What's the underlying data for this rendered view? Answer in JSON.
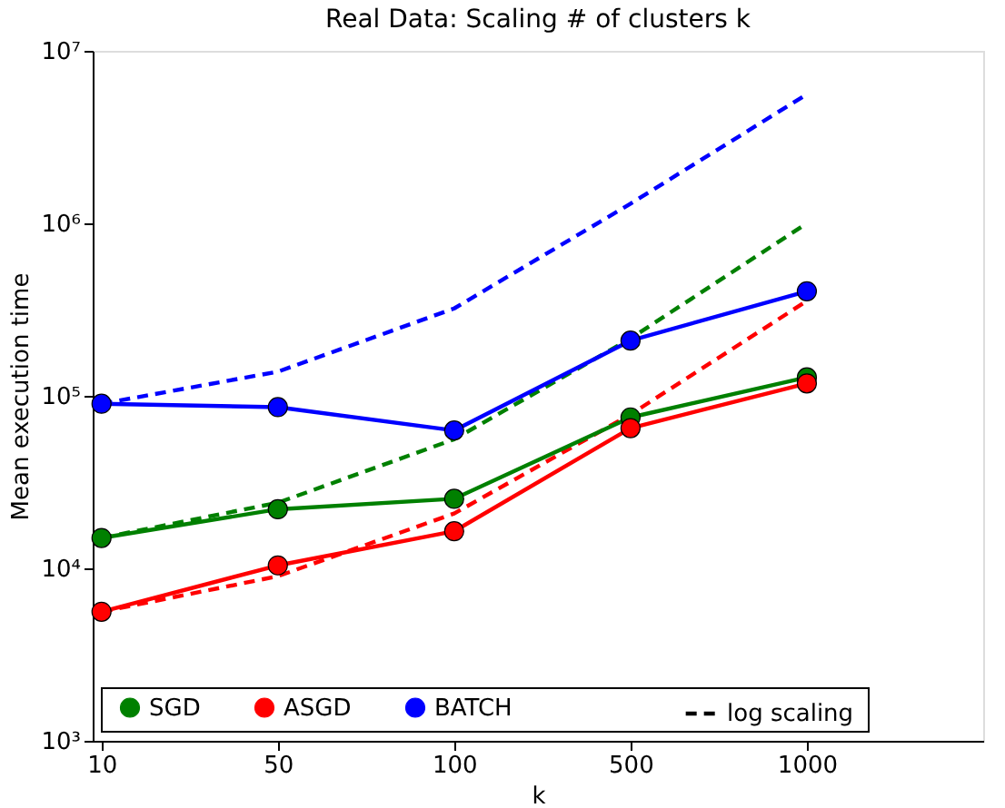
{
  "chart_data": {
    "type": "line",
    "title": "Real Data: Scaling # of clusters k",
    "xlabel": "k",
    "ylabel": "Mean execution time",
    "categories": [
      "10",
      "50",
      "100",
      "500",
      "1000"
    ],
    "series": [
      {
        "type": "line",
        "color": "#0000ff",
        "line_style": "dashed",
        "marker": "none",
        "values": [
          90000,
          138000,
          321000,
          1300000,
          5600000
        ]
      },
      {
        "type": "line",
        "color": "#008000",
        "line_style": "dashed",
        "marker": "none",
        "values": [
          15000,
          24000,
          56000,
          215000,
          1000000
        ]
      },
      {
        "type": "line",
        "color": "#ff0000",
        "line_style": "dashed",
        "marker": "none",
        "values": [
          5600,
          9000,
          20800,
          78000,
          355000
        ]
      },
      {
        "name": "SGD",
        "color": "#008000",
        "values": [
          15000,
          22000,
          25300,
          75000,
          128000
        ]
      },
      {
        "name": "ASGD",
        "color": "#ff0000",
        "values": [
          5600,
          10400,
          16400,
          65000,
          118000
        ]
      },
      {
        "name": "BATCH",
        "color": "#0000ff",
        "values": [
          90000,
          86000,
          63000,
          209000,
          404000
        ]
      }
    ],
    "annotations": [
      "log scaling"
    ],
    "log": true,
    "ylim": [
      1000,
      10000000
    ],
    "yticks": [
      {
        "value": 1000,
        "label": "10³"
      },
      {
        "value": 10000,
        "label": "10⁴"
      },
      {
        "value": 100000,
        "label": "10⁵"
      },
      {
        "value": 1000000,
        "label": "10⁶"
      },
      {
        "value": 10000000,
        "label": "10⁷"
      }
    ],
    "grid": false,
    "legend": "bottom left",
    "marker": "circle",
    "line_style": "solid"
  }
}
